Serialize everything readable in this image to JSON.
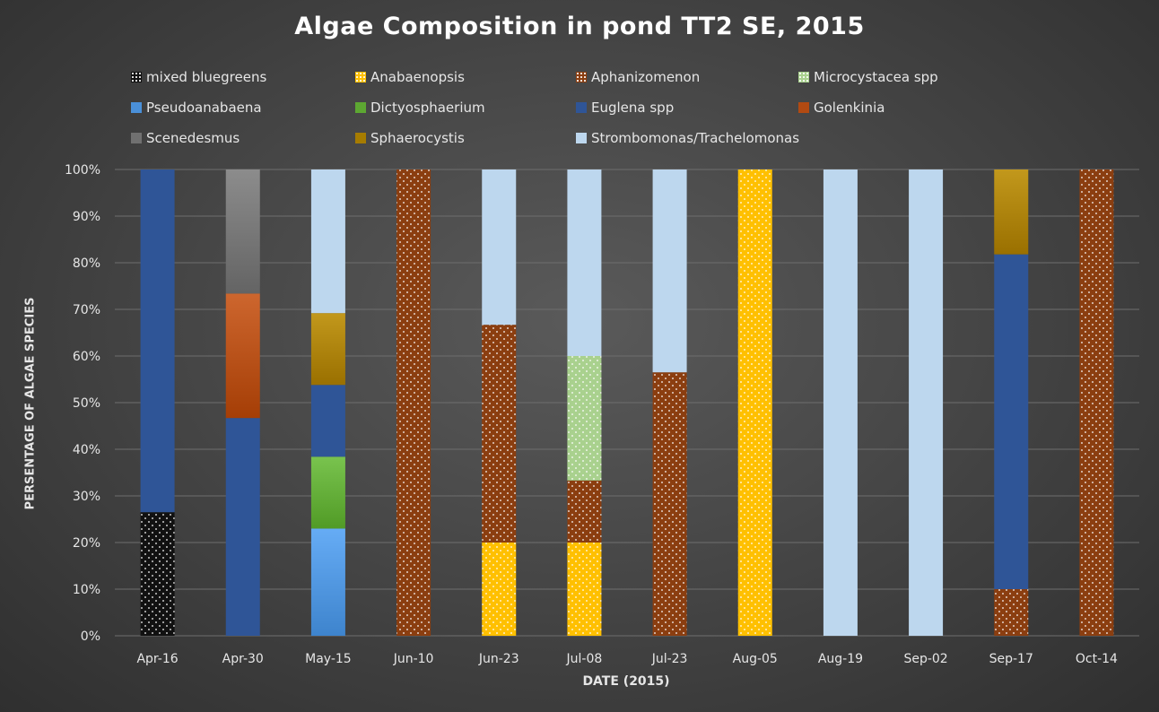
{
  "chart_data": {
    "type": "bar",
    "stacked": true,
    "percent": true,
    "title": "Algae Composition in pond TT2 SE, 2015",
    "xlabel": "DATE (2015)",
    "ylabel": "PERSENTAGE OF ALGAE SPECIES",
    "ylim": [
      0,
      100
    ],
    "yticks": [
      "0%",
      "10%",
      "20%",
      "30%",
      "40%",
      "50%",
      "60%",
      "70%",
      "80%",
      "90%",
      "100%"
    ],
    "grid": true,
    "legend_position": "top",
    "categories": [
      "Apr-16",
      "Apr-30",
      "May-15",
      "Jun-10",
      "Jun-23",
      "Jul-08",
      "Jul-23",
      "Aug-05",
      "Aug-19",
      "Sep-02",
      "Sep-17",
      "Oct-14"
    ],
    "series": [
      {
        "name": "mixed bluegreens",
        "color": "#111111",
        "pattern": "dots",
        "values": [
          26.5,
          0,
          0,
          0,
          0,
          0,
          0,
          0,
          0,
          0,
          0,
          0
        ]
      },
      {
        "name": "Anabaenopsis",
        "color": "#ffc000",
        "pattern": "dots",
        "values": [
          0,
          0,
          0,
          0,
          20,
          20,
          0,
          100,
          0,
          0,
          0,
          0
        ]
      },
      {
        "name": "Aphanizomenon",
        "color": "#8b3e10",
        "pattern": "dots",
        "values": [
          0,
          0,
          0,
          100,
          46.7,
          13.3,
          56.5,
          0,
          0,
          0,
          10,
          100
        ]
      },
      {
        "name": "Microcystacea spp",
        "color": "#a9d18e",
        "pattern": "dots",
        "values": [
          0,
          0,
          0,
          0,
          0,
          26.7,
          0,
          0,
          0,
          0,
          0,
          0
        ]
      },
      {
        "name": "Pseudoanabaena",
        "color": "#4a90d9",
        "pattern": "gradient",
        "values": [
          0,
          0,
          23,
          0,
          0,
          0,
          0,
          0,
          0,
          0,
          0,
          0
        ]
      },
      {
        "name": "Dictyosphaerium",
        "color": "#5da732",
        "pattern": "gradient",
        "values": [
          0,
          0,
          15.4,
          0,
          0,
          0,
          0,
          0,
          0,
          0,
          0,
          0
        ]
      },
      {
        "name": "Euglena spp",
        "color": "#2f5597",
        "pattern": "solid",
        "values": [
          73.5,
          46.7,
          15.4,
          0,
          0,
          0,
          0,
          0,
          0,
          0,
          71.8,
          0
        ]
      },
      {
        "name": "Golenkinia",
        "color": "#b14a12",
        "pattern": "gradient",
        "values": [
          0,
          26.7,
          0,
          0,
          0,
          0,
          0,
          0,
          0,
          0,
          0,
          0
        ]
      },
      {
        "name": "Scenedesmus",
        "color": "#707070",
        "pattern": "gradient",
        "values": [
          0,
          26.6,
          0,
          0,
          0,
          0,
          0,
          0,
          0,
          0,
          0,
          0
        ]
      },
      {
        "name": "Sphaerocystis",
        "color": "#a67c00",
        "pattern": "gradient",
        "values": [
          0,
          0,
          15.4,
          0,
          0,
          0,
          0,
          0,
          0,
          0,
          18.2,
          0
        ]
      },
      {
        "name": "Strombomonas/Trachelomonas",
        "color": "#bdd7ee",
        "pattern": "solid",
        "values": [
          0,
          0,
          30.8,
          0,
          33.3,
          40,
          43.5,
          0,
          100,
          100,
          0,
          0
        ]
      }
    ]
  }
}
